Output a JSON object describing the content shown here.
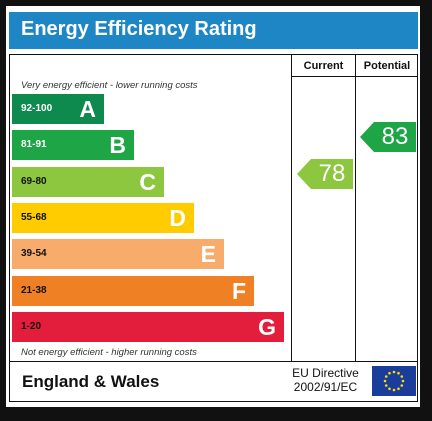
{
  "title": "Energy Efficiency Rating",
  "columns": {
    "current": "Current",
    "potential": "Potential"
  },
  "top_note": "Very energy efficient - lower running costs",
  "bottom_note": "Not energy efficient - higher running costs",
  "footer": {
    "region": "England & Wales",
    "directive_line1": "EU Directive",
    "directive_line2": "2002/91/EC",
    "flag_icon": "eu-flag-icon"
  },
  "chart_data": {
    "type": "bar",
    "categories": [
      "A",
      "B",
      "C",
      "D",
      "E",
      "F",
      "G"
    ],
    "ranges": [
      "92-100",
      "81-91",
      "69-80",
      "55-68",
      "39-54",
      "21-38",
      "1-20"
    ],
    "colors": [
      "#0f8a4e",
      "#1da546",
      "#8dc63f",
      "#ffcc00",
      "#f7ac6c",
      "#ef8023",
      "#e31d3c"
    ],
    "ratings": [
      {
        "label": "Current",
        "value": 78,
        "band": "C",
        "color": "#8dc63f"
      },
      {
        "label": "Potential",
        "value": 83,
        "band": "B",
        "color": "#1da546"
      }
    ]
  }
}
